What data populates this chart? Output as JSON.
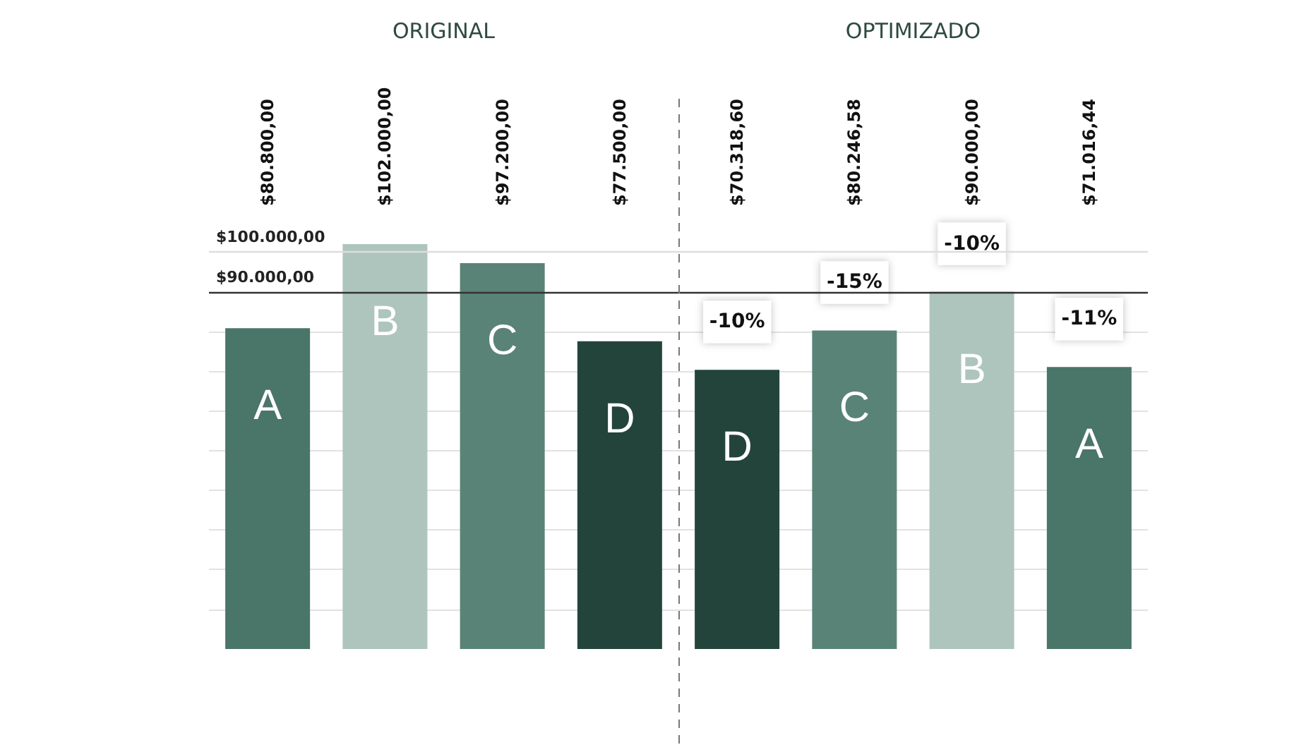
{
  "chart_data": {
    "type": "bar",
    "categories": [
      "A",
      "B",
      "C",
      "D",
      "D",
      "C",
      "B",
      "A"
    ],
    "values": [
      80800,
      102000,
      97200,
      77500,
      70318.6,
      80246.58,
      90000,
      71016.44
    ],
    "colors": [
      "#4a7569",
      "#adc5bd",
      "#5a8378",
      "#23443a",
      "#23443a",
      "#5a8378",
      "#adc5bd",
      "#4a7569"
    ],
    "value_labels": [
      "$80.800,00",
      "$102.000,00",
      "$97.200,00",
      "$77.500,00",
      "$70.318,60",
      "$80.246,58",
      "$90.000,00",
      "$71.016,44"
    ],
    "yticks": [
      {
        "value": 10000,
        "label": null
      },
      {
        "value": 20000,
        "label": null
      },
      {
        "value": 30000,
        "label": null
      },
      {
        "value": 40000,
        "label": null
      },
      {
        "value": 50000,
        "label": null
      },
      {
        "value": 60000,
        "label": null
      },
      {
        "value": 70000,
        "label": null
      },
      {
        "value": 80000,
        "label": null
      }
    ],
    "grid": "y",
    "tick_labels": false,
    "ref_lines": [
      {
        "axis": "y",
        "value": 100000,
        "label": "$100.000,00",
        "color": "#dddddd"
      },
      {
        "axis": "y",
        "value": 90000,
        "label": "$90.000,00",
        "color": "#333333"
      }
    ],
    "annotations": [
      "ORIGINAL",
      "OPTIMIZADO",
      "-10%",
      "-15%",
      "-10%",
      "-11%"
    ]
  }
}
